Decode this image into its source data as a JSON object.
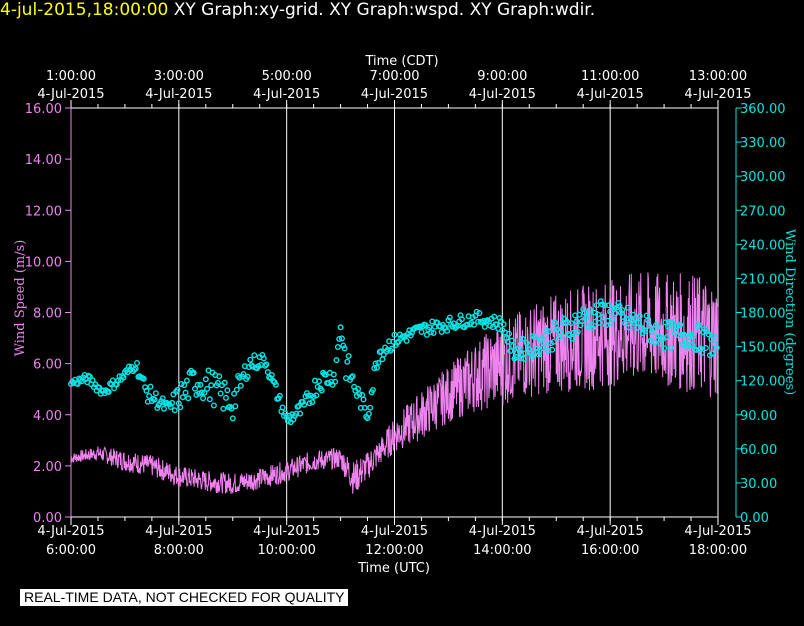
{
  "header": {
    "timestamp": "4-jul-2015,18:00:00",
    "graphs": [
      "XY Graph:xy-grid.",
      "XY Graph:wspd.",
      "XY Graph:wdir."
    ]
  },
  "footer": {
    "qc_note": "REAL-TIME DATA, NOT CHECKED FOR QUALITY"
  },
  "colors": {
    "speed": "#ee82ee",
    "direction": "#00e5e5",
    "grid": "#ffffff",
    "timestamp": "#ffff00"
  },
  "chart_data": {
    "type": "scatter",
    "grid": true,
    "top_axis": {
      "title": "Time (CDT)",
      "ticks": [
        {
          "time": "1:00:00",
          "date": "4-Jul-2015"
        },
        {
          "time": "3:00:00",
          "date": "4-Jul-2015"
        },
        {
          "time": "5:00:00",
          "date": "4-Jul-2015"
        },
        {
          "time": "7:00:00",
          "date": "4-Jul-2015"
        },
        {
          "time": "9:00:00",
          "date": "4-Jul-2015"
        },
        {
          "time": "11:00:00",
          "date": "4-Jul-2015"
        },
        {
          "time": "13:00:00",
          "date": "4-Jul-2015"
        }
      ]
    },
    "bottom_axis": {
      "title": "Time (UTC)",
      "range_hours_utc": [
        6,
        18
      ],
      "ticks": [
        {
          "date": "4-Jul-2015",
          "time": "6:00:00"
        },
        {
          "date": "4-Jul-2015",
          "time": "8:00:00"
        },
        {
          "date": "4-Jul-2015",
          "time": "10:00:00"
        },
        {
          "date": "4-Jul-2015",
          "time": "12:00:00"
        },
        {
          "date": "4-Jul-2015",
          "time": "14:00:00"
        },
        {
          "date": "4-Jul-2015",
          "time": "16:00:00"
        },
        {
          "date": "4-Jul-2015",
          "time": "18:00:00"
        }
      ]
    },
    "left_axis": {
      "label": "Wind Speed (m/s)",
      "range": [
        0,
        16
      ],
      "ticks": [
        "0.00",
        "2.00",
        "4.00",
        "6.00",
        "8.00",
        "10.00",
        "12.00",
        "14.00",
        "16.00"
      ]
    },
    "right_axis": {
      "label": "Wind Direction (degrees)",
      "range": [
        0,
        360
      ],
      "ticks": [
        "0.00",
        "30.00",
        "60.00",
        "90.00",
        "120.00",
        "150.00",
        "180.00",
        "210.00",
        "240.00",
        "270.00",
        "300.00",
        "330.00",
        "360.00"
      ]
    },
    "series": [
      {
        "name": "Wind Speed",
        "axis": "left",
        "style": "line",
        "x_hours_utc": [
          6.0,
          6.5,
          7.0,
          7.5,
          8.0,
          8.5,
          9.0,
          9.5,
          10.0,
          10.5,
          11.0,
          11.25,
          11.5,
          11.75,
          12.0,
          12.5,
          13.0,
          13.5,
          14.0,
          14.5,
          15.0,
          15.5,
          16.0,
          16.5,
          17.0,
          17.5,
          18.0
        ],
        "values": [
          2.3,
          2.5,
          2.2,
          2.0,
          1.6,
          1.4,
          1.3,
          1.5,
          1.8,
          2.2,
          2.3,
          1.5,
          2.0,
          2.6,
          3.2,
          4.0,
          4.8,
          5.5,
          6.0,
          6.5,
          6.8,
          7.0,
          7.2,
          7.4,
          7.3,
          7.2,
          7.0
        ],
        "spread": [
          0.15,
          0.2,
          0.3,
          0.3,
          0.3,
          0.3,
          0.3,
          0.3,
          0.3,
          0.3,
          0.3,
          0.5,
          0.4,
          0.4,
          0.5,
          0.7,
          0.8,
          1.0,
          1.2,
          1.3,
          1.4,
          1.5,
          1.5,
          1.6,
          1.6,
          1.7,
          1.7
        ]
      },
      {
        "name": "Wind Direction",
        "axis": "right",
        "style": "circles",
        "x_hours_utc": [
          6.0,
          6.3,
          6.6,
          7.0,
          7.2,
          7.4,
          7.8,
          8.0,
          8.3,
          8.6,
          9.0,
          9.3,
          9.6,
          10.0,
          10.3,
          10.6,
          10.9,
          11.0,
          11.1,
          11.3,
          11.5,
          11.7,
          12.0,
          12.5,
          13.0,
          13.5,
          14.0,
          14.2,
          14.5,
          15.0,
          15.5,
          16.0,
          16.5,
          17.0,
          17.5,
          18.0
        ],
        "values": [
          118,
          122,
          110,
          125,
          135,
          110,
          95,
          105,
          120,
          115,
          100,
          135,
          138,
          85,
          95,
          120,
          125,
          170,
          135,
          110,
          90,
          145,
          155,
          165,
          170,
          175,
          170,
          145,
          150,
          160,
          175,
          180,
          170,
          160,
          160,
          150
        ],
        "spread": [
          3,
          4,
          4,
          5,
          5,
          8,
          6,
          12,
          15,
          15,
          15,
          8,
          6,
          6,
          8,
          10,
          8,
          10,
          15,
          8,
          8,
          10,
          6,
          6,
          6,
          6,
          6,
          8,
          10,
          12,
          12,
          12,
          12,
          12,
          12,
          12
        ]
      }
    ]
  }
}
